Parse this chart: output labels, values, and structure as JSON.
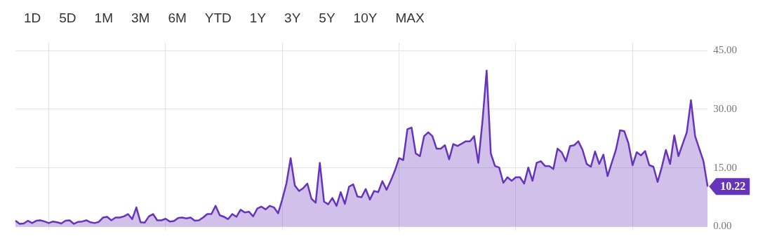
{
  "chart_data": {
    "type": "area",
    "annotations": [
      "1D",
      "5D",
      "1M",
      "3M",
      "6M",
      "YTD",
      "1Y",
      "3Y",
      "5Y",
      "10Y",
      "MAX",
      "10.22"
    ],
    "categories": [
      null,
      null,
      null,
      null,
      null,
      null,
      null,
      null,
      null,
      null,
      null,
      null,
      null,
      null,
      null,
      null,
      null,
      null,
      null,
      null,
      null,
      null,
      null,
      null,
      null,
      null,
      null,
      null,
      null,
      null,
      null,
      null,
      null,
      null,
      null,
      null,
      null,
      null,
      null,
      null,
      null,
      null,
      null,
      null,
      null,
      null,
      null,
      null,
      null,
      null,
      null,
      null,
      null,
      null,
      null,
      null,
      null,
      null,
      null,
      null,
      null,
      null,
      null,
      null,
      null,
      null,
      null,
      null,
      null,
      null,
      null,
      null,
      null,
      null,
      null,
      null,
      null,
      null,
      null,
      null,
      null,
      null,
      null,
      null,
      null,
      null,
      null,
      null,
      null,
      null,
      null,
      null,
      null,
      null,
      null,
      null,
      null,
      null,
      null,
      null,
      null,
      null,
      null,
      null,
      null,
      null,
      null,
      null,
      null,
      null,
      null,
      null,
      null,
      null,
      null,
      null,
      null,
      null,
      null,
      null,
      null,
      null,
      null,
      null,
      null,
      null,
      null,
      null,
      null,
      null,
      null,
      null,
      null,
      null,
      null,
      null,
      null,
      null,
      null,
      null,
      null,
      null,
      null,
      null,
      null,
      null,
      null,
      null,
      null,
      null,
      null,
      null,
      null,
      null,
      null,
      null,
      null,
      null,
      null,
      null,
      null,
      null,
      null,
      null,
      null,
      null,
      null
    ],
    "series": [
      {
        "color": "#6633bb",
        "values": [
          1.5,
          0.7,
          0.8,
          1.5,
          0.9,
          1.5,
          1.6,
          1.3,
          0.9,
          1.3,
          1.1,
          0.8,
          1.5,
          1.6,
          0.7,
          1.2,
          1.3,
          1.6,
          1.1,
          0.9,
          1.2,
          2.3,
          2.5,
          1.6,
          2.3,
          2.3,
          2.6,
          3.2,
          1.9,
          4.9,
          1.1,
          1.0,
          2.6,
          3.2,
          1.6,
          1.6,
          2.0,
          1.3,
          1.4,
          2.2,
          2.3,
          2.1,
          2.3,
          1.5,
          1.6,
          2.3,
          3.2,
          3.2,
          5.3,
          2.9,
          2.5,
          1.9,
          3.2,
          2.5,
          4.3,
          3.6,
          3.8,
          2.6,
          4.6,
          5.1,
          4.4,
          5.3,
          4.9,
          3.4,
          7.0,
          11.1,
          17.5,
          10.5,
          9.1,
          9.8,
          11.0,
          7.1,
          6.1,
          16.3,
          6.4,
          5.7,
          7.3,
          5.3,
          8.8,
          5.8,
          10.2,
          10.8,
          7.7,
          7.5,
          9.6,
          6.9,
          9.1,
          8.8,
          11.6,
          9.4,
          11.7,
          14.3,
          17.5,
          17.0,
          24.9,
          25.3,
          18.7,
          18.0,
          23.1,
          24.1,
          23.1,
          19.9,
          19.9,
          20.8,
          17.2,
          21.1,
          20.6,
          21.2,
          21.8,
          21.8,
          23.1,
          16.3,
          26.9,
          39.9,
          18.7,
          15.5,
          15.1,
          11.2,
          12.6,
          11.7,
          12.6,
          12.6,
          11.0,
          15.1,
          11.7,
          16.3,
          16.7,
          15.5,
          15.5,
          14.7,
          19.9,
          19.0,
          16.7,
          20.6,
          20.8,
          21.8,
          19.6,
          16.0,
          15.3,
          19.2,
          16.0,
          18.4,
          12.9,
          16.3,
          19.6,
          24.6,
          24.4,
          21.3,
          15.7,
          19.0,
          18.2,
          19.3,
          15.7,
          15.3,
          11.4,
          15.2,
          19.6,
          16.0,
          23.3,
          18.0,
          21.1,
          24.1,
          32.3,
          23.1,
          19.9,
          16.7,
          10.22
        ]
      }
    ],
    "ylim": [
      -1,
      47
    ],
    "yticks": [
      {
        "value": 0,
        "label": "0.00"
      },
      {
        "value": 15,
        "label": "15.00"
      },
      {
        "value": 30,
        "label": "30.00"
      },
      {
        "value": 45,
        "label": "45.00"
      }
    ],
    "grid": true,
    "tick_labels": "y"
  }
}
